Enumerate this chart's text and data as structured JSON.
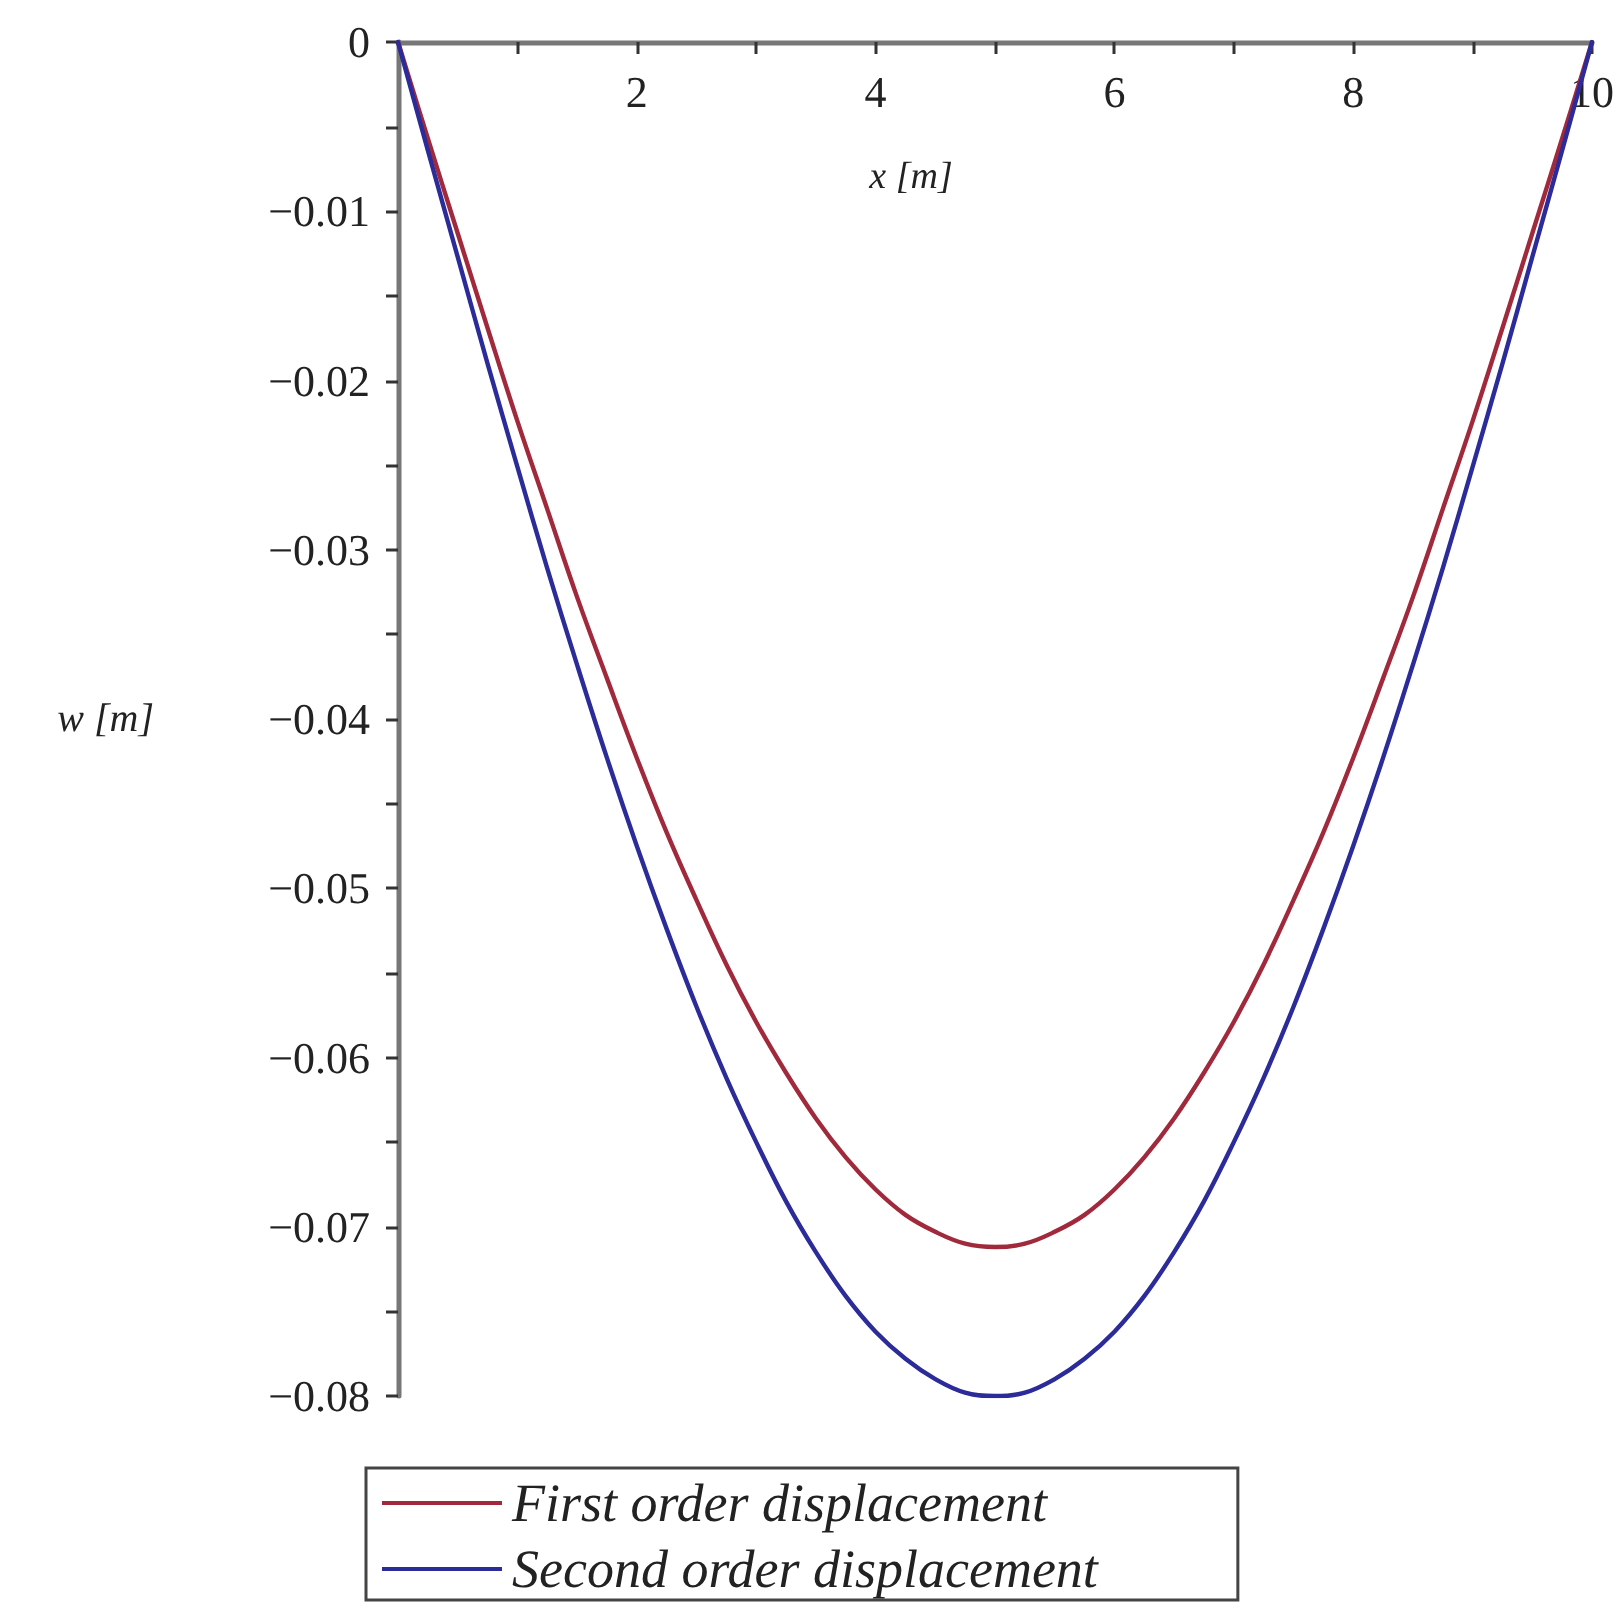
{
  "chart_data": {
    "type": "line",
    "xlabel": "x [m]",
    "ylabel": "w [m]",
    "x": [
      0,
      0.25,
      0.5,
      0.75,
      1,
      1.25,
      1.5,
      1.75,
      2,
      2.25,
      2.5,
      2.75,
      3,
      3.25,
      3.5,
      3.75,
      4,
      4.25,
      4.5,
      4.75,
      5,
      5.25,
      5.5,
      5.75,
      6,
      6.25,
      6.5,
      6.75,
      7,
      7.25,
      7.5,
      7.75,
      8,
      8.25,
      8.5,
      8.75,
      9,
      9.25,
      9.5,
      9.75,
      10
    ],
    "series": [
      {
        "name": "First order displacement",
        "color": "#a02a3c",
        "values": [
          0,
          -0.0057,
          -0.0113,
          -0.0169,
          -0.0224,
          -0.0276,
          -0.0328,
          -0.0376,
          -0.0423,
          -0.0467,
          -0.0507,
          -0.0545,
          -0.0579,
          -0.0609,
          -0.0636,
          -0.0659,
          -0.0678,
          -0.0693,
          -0.0703,
          -0.071,
          -0.0712,
          -0.071,
          -0.0703,
          -0.0693,
          -0.0678,
          -0.0659,
          -0.0636,
          -0.0609,
          -0.0579,
          -0.0545,
          -0.0507,
          -0.0467,
          -0.0423,
          -0.0376,
          -0.0328,
          -0.0276,
          -0.0224,
          -0.0169,
          -0.0113,
          -0.0057,
          0
        ]
      },
      {
        "name": "Second order displacement",
        "color": "#2b2b99",
        "values": [
          0,
          -0.0064,
          -0.0127,
          -0.019,
          -0.0251,
          -0.0311,
          -0.0368,
          -0.0423,
          -0.0475,
          -0.0524,
          -0.057,
          -0.0612,
          -0.065,
          -0.0685,
          -0.0715,
          -0.0741,
          -0.0762,
          -0.0778,
          -0.079,
          -0.0798,
          -0.08,
          -0.0798,
          -0.079,
          -0.0778,
          -0.0762,
          -0.0741,
          -0.0715,
          -0.0685,
          -0.065,
          -0.0612,
          -0.057,
          -0.0524,
          -0.0475,
          -0.0423,
          -0.0368,
          -0.0311,
          -0.0251,
          -0.019,
          -0.0127,
          -0.0064,
          0
        ]
      }
    ],
    "xlim": [
      0,
      10
    ],
    "xticks": [
      {
        "value": 1,
        "label": null
      },
      2,
      {
        "value": 3,
        "label": null
      },
      4,
      {
        "value": 5,
        "label": null
      },
      6,
      {
        "value": 7,
        "label": null
      },
      8,
      {
        "value": 9,
        "label": null
      },
      10
    ],
    "ylim": [
      -0.08,
      0
    ],
    "yticks": [
      0,
      {
        "value": -0.005,
        "label": null
      },
      {
        "value": -0.01,
        "label": "−0.01"
      },
      {
        "value": -0.015,
        "label": null
      },
      {
        "value": -0.02,
        "label": "−0.02"
      },
      {
        "value": -0.025,
        "label": null
      },
      {
        "value": -0.03,
        "label": "−0.03"
      },
      {
        "value": -0.035,
        "label": null
      },
      {
        "value": -0.04,
        "label": "−0.04"
      },
      {
        "value": -0.045,
        "label": null
      },
      {
        "value": -0.05,
        "label": "−0.05"
      },
      {
        "value": -0.055,
        "label": null
      },
      {
        "value": -0.06,
        "label": "−0.06"
      },
      {
        "value": -0.065,
        "label": null
      },
      {
        "value": -0.07,
        "label": "−0.07"
      },
      {
        "value": -0.075,
        "label": null
      },
      {
        "value": -0.08,
        "label": "−0.08"
      }
    ],
    "grid": false,
    "legend": "bottom left",
    "marker": "none",
    "line_style": "solid"
  }
}
